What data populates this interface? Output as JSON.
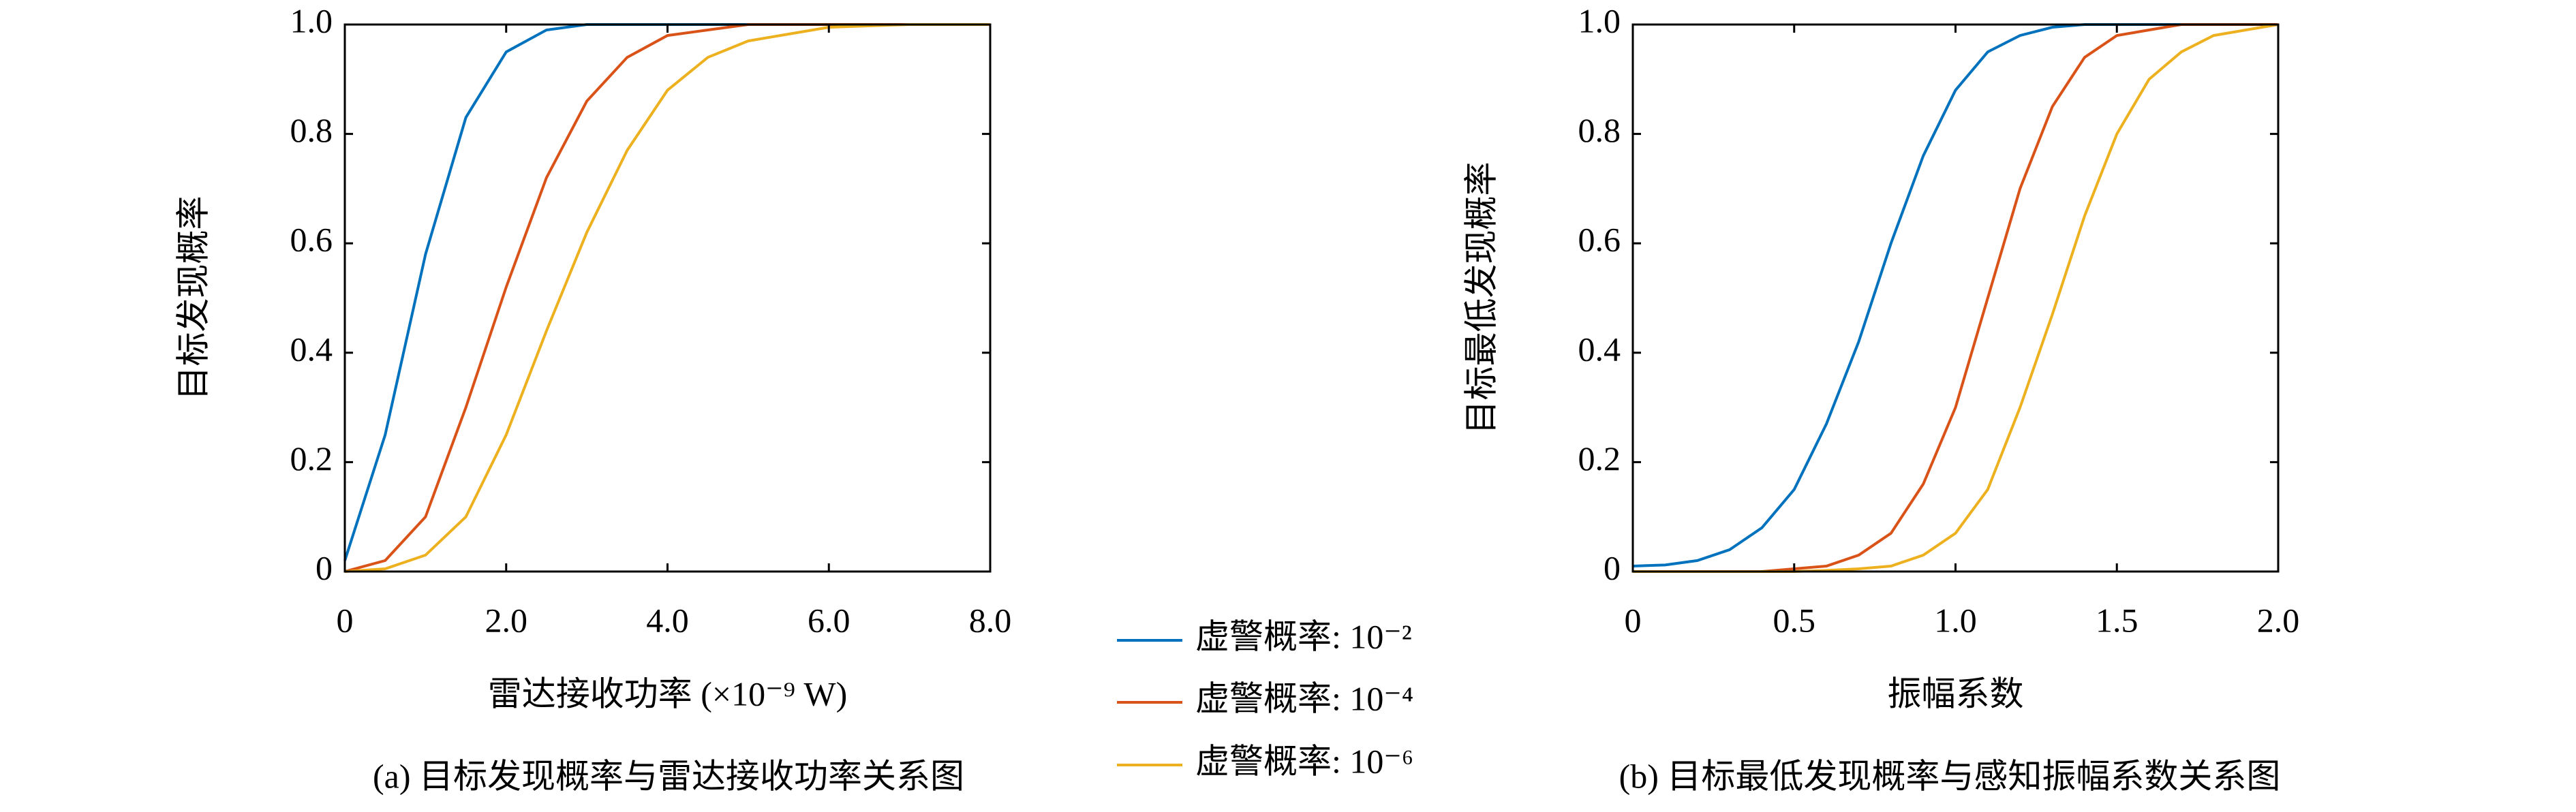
{
  "chart_data": [
    {
      "type": "line",
      "title": "(a) 目标发现概率与雷达接收功率关系图",
      "x_label": "雷达接收功率 (×10⁻⁹ W)",
      "y_label": "目标发现概率",
      "x": [
        0,
        0.5,
        1,
        1.5,
        2,
        2.5,
        3,
        3.5,
        4,
        4.5,
        5,
        6,
        7,
        8
      ],
      "series": [
        {
          "name": "虚警概率: 10⁻²",
          "color": "#0072bd",
          "values": [
            0.02,
            0.25,
            0.58,
            0.83,
            0.95,
            0.99,
            1,
            1,
            1,
            1,
            1,
            1,
            1,
            1
          ]
        },
        {
          "name": "虚警概率: 10⁻⁴",
          "color": "#d95319",
          "values": [
            0,
            0.02,
            0.1,
            0.3,
            0.52,
            0.72,
            0.86,
            0.94,
            0.98,
            0.99,
            1,
            1,
            1,
            1
          ]
        },
        {
          "name": "虚警概率: 10⁻⁶",
          "color": "#edb120",
          "values": [
            0,
            0.005,
            0.03,
            0.1,
            0.25,
            0.44,
            0.62,
            0.77,
            0.88,
            0.94,
            0.97,
            0.995,
            1,
            1
          ]
        }
      ],
      "xlim": [
        0,
        8
      ],
      "xticks": [
        0,
        {
          "value": 2,
          "label": "2.0"
        },
        {
          "value": 4,
          "label": "4.0"
        },
        {
          "value": 6,
          "label": "6.0"
        },
        {
          "value": 8,
          "label": "8.0"
        }
      ],
      "ylim": [
        0,
        1
      ],
      "yticks": [
        0,
        0.2,
        0.4,
        0.6,
        0.8,
        {
          "value": 1,
          "label": "1.0"
        }
      ]
    },
    {
      "type": "line",
      "title": "(b) 目标最低发现概率与感知振幅系数关系图",
      "x_label": "振幅系数",
      "y_label": "目标最低发现概率",
      "x": [
        0,
        0.1,
        0.2,
        0.3,
        0.4,
        0.5,
        0.6,
        0.7,
        0.8,
        0.9,
        1.0,
        1.1,
        1.2,
        1.3,
        1.4,
        1.5,
        1.6,
        1.7,
        1.8,
        1.9,
        2.0
      ],
      "series": [
        {
          "color": "#0072bd",
          "values": [
            0.01,
            0.012,
            0.02,
            0.04,
            0.08,
            0.15,
            0.27,
            0.42,
            0.6,
            0.76,
            0.88,
            0.95,
            0.98,
            0.995,
            1,
            1,
            1,
            1,
            1,
            1,
            1
          ]
        },
        {
          "color": "#d95319",
          "values": [
            0,
            0,
            0,
            0,
            0,
            0.005,
            0.01,
            0.03,
            0.07,
            0.16,
            0.3,
            0.5,
            0.7,
            0.85,
            0.94,
            0.98,
            0.99,
            1,
            1,
            1,
            1
          ]
        },
        {
          "color": "#edb120",
          "values": [
            0,
            0,
            0,
            0,
            0,
            0,
            0.002,
            0.005,
            0.01,
            0.03,
            0.07,
            0.15,
            0.3,
            0.47,
            0.65,
            0.8,
            0.9,
            0.95,
            0.98,
            0.99,
            1
          ]
        }
      ],
      "xlim": [
        0,
        2
      ],
      "xticks": [
        0,
        0.5,
        {
          "value": 1,
          "label": "1.0"
        },
        1.5,
        {
          "value": 2,
          "label": "2.0"
        }
      ],
      "ylim": [
        0,
        1
      ],
      "yticks": [
        0,
        0.2,
        0.4,
        0.6,
        0.8,
        {
          "value": 1,
          "label": "1.0"
        }
      ]
    }
  ]
}
